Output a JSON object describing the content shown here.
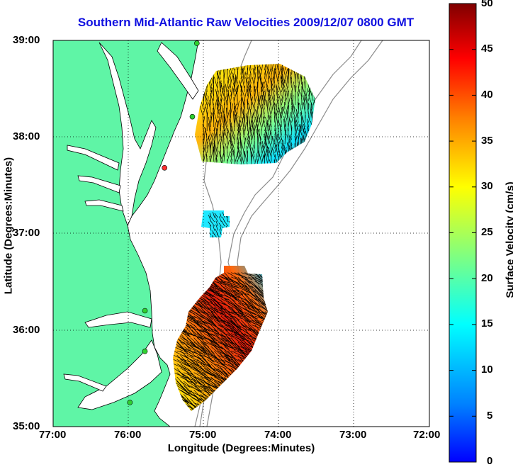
{
  "title": "Southern Mid-Atlantic Raw Velocities 2009/12/07 0800 GMT",
  "colors": {
    "land": "#5ff5a6",
    "title": "#1010e0",
    "bathy": "#8c8c8c"
  },
  "chart_data": {
    "type": "map",
    "xlabel": "Longitude (Degrees:Minutes)",
    "ylabel": "Latitude (Degrees:Minutes)",
    "xlim": [
      -77,
      -72
    ],
    "ylim": [
      35,
      39
    ],
    "xticks": [
      "77:00",
      "76:00",
      "75:00",
      "74:00",
      "73:00",
      "72:00"
    ],
    "yticks": [
      "39:00",
      "38:00",
      "37:00",
      "36:00",
      "35:00"
    ],
    "grid": true,
    "colorbar": {
      "label": "Surface Velocity (cm/s)",
      "range": [
        0,
        50
      ],
      "ticks": [
        "50",
        "45",
        "40",
        "35",
        "30",
        "25",
        "20",
        "15",
        "10",
        "5",
        "0"
      ],
      "colormap": "jet"
    },
    "stations": [
      {
        "lon": -75.09,
        "lat": 38.97
      },
      {
        "lon": -75.15,
        "lat": 38.21
      },
      {
        "lon": -75.52,
        "lat": 37.68
      },
      {
        "lon": -75.78,
        "lat": 36.2
      },
      {
        "lon": -75.78,
        "lat": 35.78
      },
      {
        "lon": -75.98,
        "lat": 35.25
      }
    ],
    "regions": [
      {
        "name": "north",
        "lon_range": [
          -75.0,
          -73.5
        ],
        "lat_range": [
          37.7,
          38.7
        ],
        "speed_range": [
          5,
          45
        ]
      },
      {
        "name": "middle",
        "lon_range": [
          -74.9,
          -74.6
        ],
        "lat_range": [
          36.85,
          37.2
        ],
        "speed_range": [
          8,
          14
        ]
      },
      {
        "name": "south",
        "lon_range": [
          -75.4,
          -74.1
        ],
        "lat_range": [
          35.2,
          36.6
        ],
        "speed_range": [
          10,
          50
        ]
      }
    ]
  }
}
